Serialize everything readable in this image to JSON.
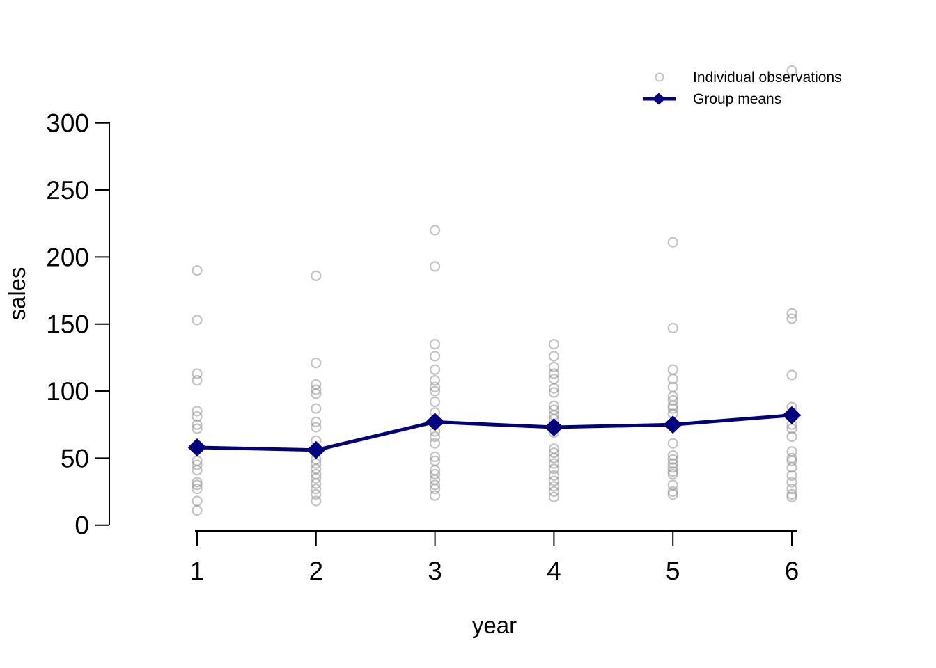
{
  "chart_data": {
    "type": "scatter",
    "xlabel": "year",
    "ylabel": "sales",
    "xlim": [
      1,
      6
    ],
    "ylim": [
      0,
      300
    ],
    "x_ticks": [
      1,
      2,
      3,
      4,
      5,
      6
    ],
    "y_ticks": [
      0,
      50,
      100,
      150,
      200,
      250,
      300
    ],
    "grid": false,
    "legend_position": "top-right",
    "series": [
      {
        "name": "Individual observations",
        "type": "scatter",
        "marker": "open-circle",
        "color": "#888888",
        "opacity": 0.5,
        "groups": [
          {
            "x": 1,
            "values": [
              190,
              153,
              113,
              108,
              85,
              81,
              75,
              72,
              48,
              45,
              41,
              32,
              30,
              27,
              18,
              11
            ]
          },
          {
            "x": 2,
            "values": [
              186,
              121,
              105,
              101,
              98,
              87,
              77,
              73,
              63,
              49,
              46,
              42,
              38,
              35,
              31,
              27,
              23,
              18
            ]
          },
          {
            "x": 3,
            "values": [
              220,
              193,
              135,
              126,
              116,
              108,
              103,
              100,
              92,
              84,
              70,
              66,
              61,
              51,
              48,
              41,
              38,
              34,
              30,
              27,
              22
            ]
          },
          {
            "x": 4,
            "values": [
              135,
              126,
              118,
              113,
              109,
              102,
              99,
              89,
              86,
              82,
              79,
              69,
              57,
              54,
              50,
              46,
              42,
              37,
              33,
              29,
              25,
              21
            ]
          },
          {
            "x": 5,
            "values": [
              211,
              147,
              116,
              109,
              103,
              96,
              93,
              89,
              87,
              83,
              61,
              52,
              49,
              46,
              43,
              40,
              38,
              30,
              25,
              23
            ]
          },
          {
            "x": 6,
            "values": [
              339,
              158,
              154,
              112,
              88,
              75,
              72,
              66,
              55,
              50,
              48,
              43,
              37,
              32,
              27,
              23,
              21
            ]
          }
        ]
      },
      {
        "name": "Group means",
        "type": "line",
        "marker": "filled-diamond",
        "color": "#000080",
        "x": [
          1,
          2,
          3,
          4,
          5,
          6
        ],
        "values": [
          58,
          56,
          77,
          73,
          75,
          82
        ]
      }
    ]
  },
  "colors": {
    "observations": "#888888",
    "means": "#000080",
    "axis": "#000000",
    "background": "#ffffff"
  }
}
